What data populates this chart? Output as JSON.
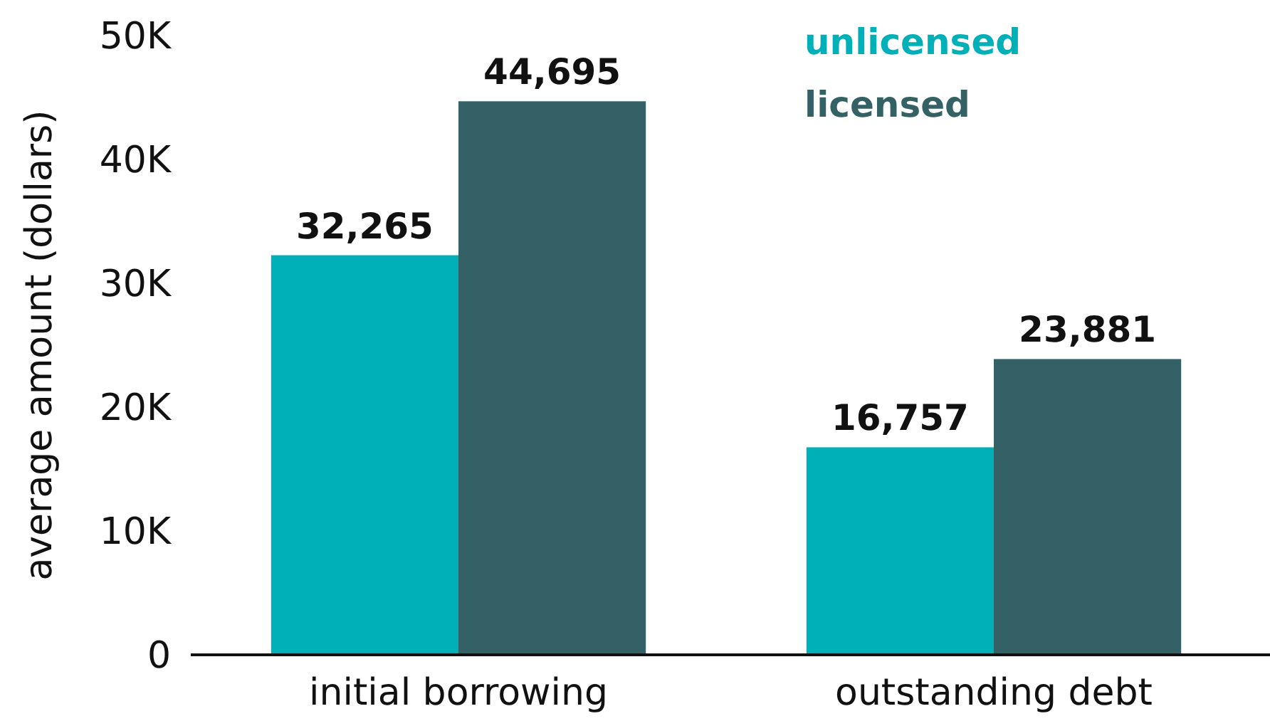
{
  "chart_data": {
    "type": "bar",
    "ylabel": "average amount (dollars)",
    "categories": [
      "initial borrowing",
      "outstanding debt"
    ],
    "series": [
      {
        "name": "unlicensed",
        "color": "#00b0b9",
        "values": [
          32265,
          16757
        ],
        "value_labels": [
          "32,265",
          "16,757"
        ]
      },
      {
        "name": "licensed",
        "color": "#336166",
        "values": [
          44695,
          23881
        ],
        "value_labels": [
          "44,695",
          "23,881"
        ]
      }
    ],
    "ylim": [
      0,
      50000
    ],
    "yticks": [
      0,
      {
        "value": 10000,
        "label": "10K"
      },
      {
        "value": 20000,
        "label": "20K"
      },
      {
        "value": 30000,
        "label": "30K"
      },
      {
        "value": 40000,
        "label": "40K"
      },
      {
        "value": 50000,
        "label": "50K"
      }
    ],
    "grid": false,
    "legend": "top right"
  }
}
